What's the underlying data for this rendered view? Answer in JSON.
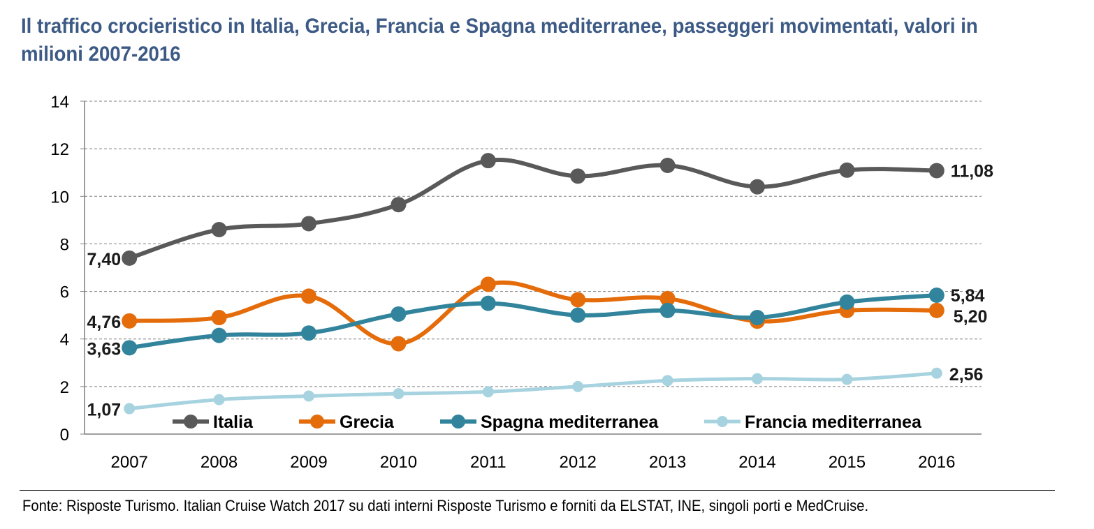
{
  "title": "Il traffico crocieristico in Italia, Grecia, Francia e Spagna mediterranee, passeggeri movimentati, valori in milioni 2007-2016",
  "source": "Fonte: Risposte Turismo. Italian Cruise Watch 2017 su dati interni Risposte Turismo e forniti da ELSTAT, INE, singoli porti e MedCruise.",
  "chart_data": {
    "type": "line",
    "title": "Il traffico crocieristico in Italia, Grecia, Francia e Spagna mediterranee, passeggeri movimentati, valori in milioni 2007-2016",
    "xlabel": "",
    "ylabel": "",
    "ylim": [
      0,
      14
    ],
    "yticks": [
      "0",
      "2",
      "4",
      "6",
      "8",
      "10",
      "12",
      "14"
    ],
    "categories": [
      "2007",
      "2008",
      "2009",
      "2010",
      "2011",
      "2012",
      "2013",
      "2014",
      "2015",
      "2016"
    ],
    "grid": "horizontal dashed",
    "legend_position": "bottom inside plot",
    "series": [
      {
        "name": "Italia",
        "color": "#595959",
        "values": [
          7.4,
          8.6,
          8.85,
          9.65,
          11.5,
          10.85,
          11.3,
          10.4,
          11.1,
          11.08
        ],
        "labels": [
          {
            "index": 0,
            "text": "7,40",
            "side": "left"
          },
          {
            "index": 9,
            "text": "11,08",
            "side": "right"
          }
        ]
      },
      {
        "name": "Grecia",
        "color": "#e46c0a",
        "values": [
          4.76,
          4.9,
          5.8,
          3.8,
          6.3,
          5.65,
          5.7,
          4.75,
          5.2,
          5.2
        ],
        "labels": [
          {
            "index": 0,
            "text": "4,76",
            "side": "left"
          },
          {
            "index": 9,
            "text": "5,20",
            "side": "right-below"
          }
        ]
      },
      {
        "name": "Spagna mediterranea",
        "color": "#31849b",
        "values": [
          3.63,
          4.15,
          4.25,
          5.05,
          5.5,
          5.0,
          5.2,
          4.9,
          5.55,
          5.84
        ],
        "labels": [
          {
            "index": 0,
            "text": "3,63",
            "side": "left"
          },
          {
            "index": 9,
            "text": "5,84",
            "side": "right"
          }
        ]
      },
      {
        "name": "Francia mediterranea",
        "color": "#a6d3df",
        "values": [
          1.07,
          1.45,
          1.6,
          1.7,
          1.78,
          2.0,
          2.25,
          2.33,
          2.3,
          2.56
        ],
        "labels": [
          {
            "index": 0,
            "text": "1,07",
            "side": "left"
          },
          {
            "index": 9,
            "text": "2,56",
            "side": "right"
          }
        ]
      }
    ]
  }
}
